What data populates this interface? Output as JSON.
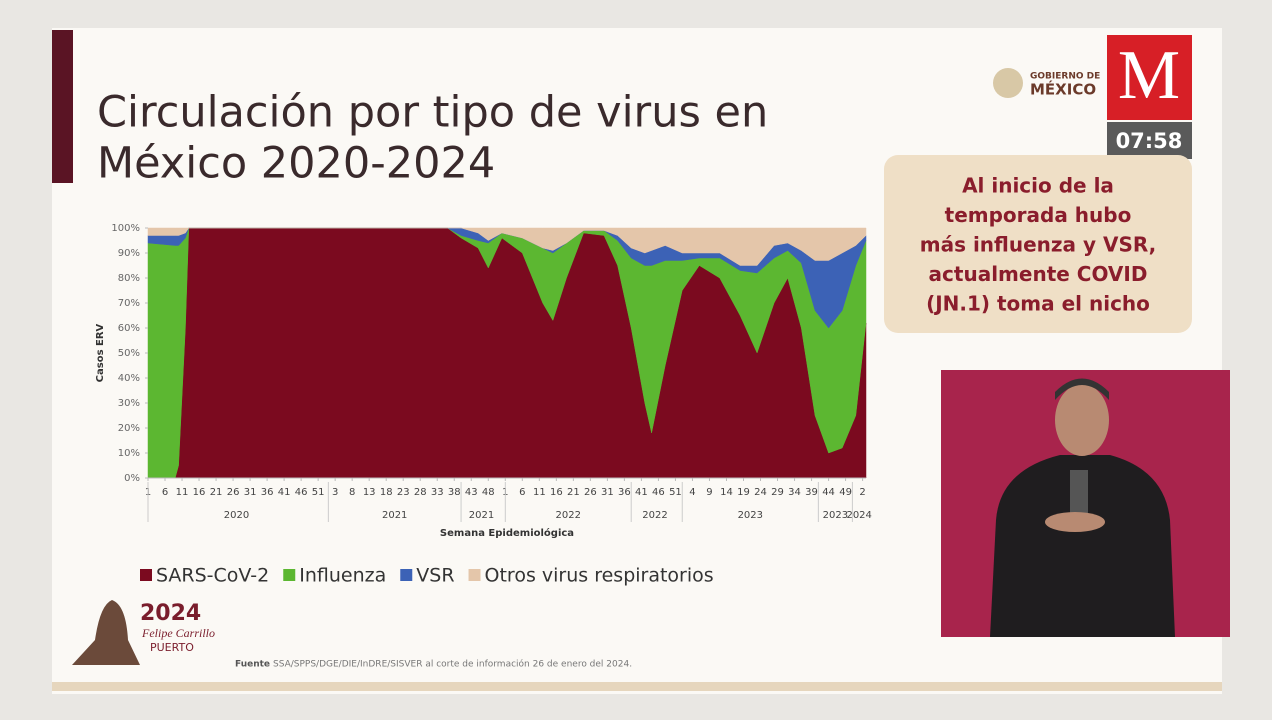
{
  "header": {
    "title_lines": [
      "Circulación por tipo de virus en",
      "México 2020-2024"
    ]
  },
  "broadcast": {
    "gov_lines": [
      "GOBIERNO DE",
      "MÉXICO"
    ],
    "logo": "M",
    "time": "07:58"
  },
  "callout": {
    "lines": [
      "Al inicio de la",
      "temporada hubo",
      "más influenza y VSR,",
      "actualmente COVID",
      "(JN.1) toma el nicho"
    ]
  },
  "footer": {
    "label": "Fuente",
    "text": "SSA/SPPS/DGE/DIE/InDRE/SISVER al corte de información 26 de enero del 2024.",
    "logo_year": "2024",
    "logo_name": "Felipe Carrillo",
    "logo_place": "PUERTO"
  },
  "chart_data": {
    "type": "stacked_area",
    "y_label": "Casos ERV",
    "x_label": "Semana Epidemiológica",
    "xlim": [
      0,
      211
    ],
    "ylim": [
      0,
      100
    ],
    "yticks": [
      {
        "value": 0,
        "label": "0%"
      },
      {
        "value": 10,
        "label": "10%"
      },
      {
        "value": 20,
        "label": "20%"
      },
      {
        "value": 30,
        "label": "30%"
      },
      {
        "value": 40,
        "label": "40%"
      },
      {
        "value": 50,
        "label": "50%"
      },
      {
        "value": 60,
        "label": "60%"
      },
      {
        "value": 70,
        "label": "70%"
      },
      {
        "value": 80,
        "label": "80%"
      },
      {
        "value": 90,
        "label": "90%"
      },
      {
        "value": 100,
        "label": "100%"
      }
    ],
    "xticks": [
      {
        "value": 0,
        "label": "1"
      },
      {
        "value": 5,
        "label": "6"
      },
      {
        "value": 10,
        "label": "11"
      },
      {
        "value": 15,
        "label": "16"
      },
      {
        "value": 20,
        "label": "21"
      },
      {
        "value": 25,
        "label": "26"
      },
      {
        "value": 30,
        "label": "31"
      },
      {
        "value": 35,
        "label": "36"
      },
      {
        "value": 40,
        "label": "41"
      },
      {
        "value": 45,
        "label": "46"
      },
      {
        "value": 50,
        "label": "51"
      },
      {
        "value": 55,
        "label": "3"
      },
      {
        "value": 60,
        "label": "8"
      },
      {
        "value": 65,
        "label": "13"
      },
      {
        "value": 70,
        "label": "18"
      },
      {
        "value": 75,
        "label": "23"
      },
      {
        "value": 80,
        "label": "28"
      },
      {
        "value": 85,
        "label": "33"
      },
      {
        "value": 90,
        "label": "38"
      },
      {
        "value": 95,
        "label": "43"
      },
      {
        "value": 100,
        "label": "48"
      },
      {
        "value": 105,
        "label": "1"
      },
      {
        "value": 110,
        "label": "6"
      },
      {
        "value": 115,
        "label": "11"
      },
      {
        "value": 120,
        "label": "16"
      },
      {
        "value": 125,
        "label": "21"
      },
      {
        "value": 130,
        "label": "26"
      },
      {
        "value": 135,
        "label": "31"
      },
      {
        "value": 140,
        "label": "36"
      },
      {
        "value": 145,
        "label": "41"
      },
      {
        "value": 150,
        "label": "46"
      },
      {
        "value": 155,
        "label": "51"
      },
      {
        "value": 160,
        "label": "4"
      },
      {
        "value": 165,
        "label": "9"
      },
      {
        "value": 170,
        "label": "14"
      },
      {
        "value": 175,
        "label": "19"
      },
      {
        "value": 180,
        "label": "24"
      },
      {
        "value": 185,
        "label": "29"
      },
      {
        "value": 190,
        "label": "34"
      },
      {
        "value": 195,
        "label": "39"
      },
      {
        "value": 200,
        "label": "44"
      },
      {
        "value": 205,
        "label": "49"
      },
      {
        "value": 210,
        "label": "2"
      }
    ],
    "year_groups": [
      {
        "label": "2020",
        "start": 0,
        "end": 52
      },
      {
        "label": "2021",
        "start": 53,
        "end": 92
      },
      {
        "label": "2021",
        "start": 92,
        "end": 104
      },
      {
        "label": "2022",
        "start": 105,
        "end": 142
      },
      {
        "label": "2022",
        "start": 142,
        "end": 156
      },
      {
        "label": "2023",
        "start": 157,
        "end": 197
      },
      {
        "label": "2023",
        "start": 197,
        "end": 207
      },
      {
        "label": "2024",
        "start": 207,
        "end": 211
      }
    ],
    "x": [
      0,
      8,
      9,
      11,
      12,
      88,
      92,
      97,
      100,
      104,
      110,
      116,
      119,
      123,
      128,
      134,
      138,
      142,
      146,
      148,
      152,
      157,
      162,
      168,
      174,
      179,
      184,
      188,
      192,
      196,
      200,
      204,
      208,
      211
    ],
    "series": [
      {
        "name": "SARS-CoV-2",
        "color": "#7b0a1f",
        "values": [
          0,
          0,
          5,
          60,
          100,
          100,
          96,
          92,
          84,
          96,
          90,
          70,
          63,
          80,
          98,
          97,
          85,
          60,
          30,
          18,
          45,
          75,
          85,
          80,
          65,
          50,
          70,
          80,
          60,
          25,
          10,
          12,
          25,
          62
        ]
      },
      {
        "name": "Influenza",
        "color": "#5cb731",
        "values": [
          94,
          93,
          88,
          36,
          0,
          0,
          1,
          3,
          10,
          2,
          6,
          22,
          27,
          14,
          1,
          2,
          10,
          28,
          55,
          67,
          42,
          12,
          3,
          8,
          18,
          32,
          18,
          11,
          26,
          42,
          50,
          55,
          60,
          33
        ]
      },
      {
        "name": "VSR",
        "color": "#3c62b6",
        "values": [
          3,
          4,
          4,
          2,
          0,
          0,
          3,
          3,
          1,
          0,
          0,
          0,
          1,
          0,
          0,
          0,
          2,
          4,
          5,
          6,
          6,
          3,
          2,
          2,
          2,
          3,
          5,
          3,
          5,
          20,
          27,
          23,
          8,
          2
        ]
      },
      {
        "name": "Otros virus respiratorios",
        "color": "#e4c6aa",
        "values": [
          3,
          3,
          3,
          2,
          0,
          0,
          0,
          2,
          5,
          2,
          4,
          8,
          9,
          6,
          1,
          1,
          3,
          8,
          10,
          9,
          7,
          10,
          10,
          10,
          15,
          15,
          7,
          6,
          9,
          13,
          13,
          10,
          7,
          3
        ]
      }
    ]
  }
}
